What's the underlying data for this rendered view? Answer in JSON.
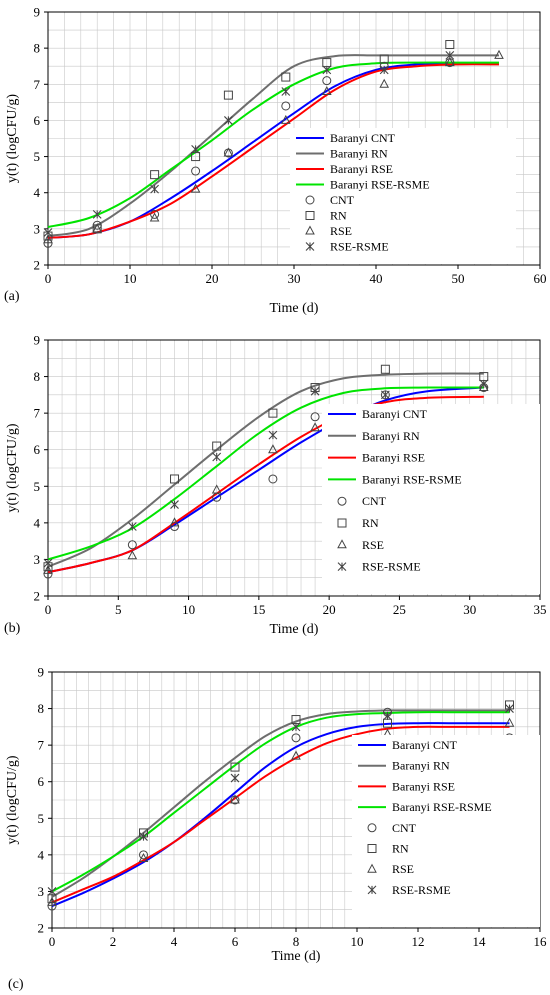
{
  "figure": {
    "colors": {
      "Baranyi CNT": "#0000FF",
      "Baranyi RN": "#6E6E6E",
      "Baranyi RSE": "#FF0000",
      "Baranyi RSE-RSME": "#00E400",
      "markers": "#444444",
      "grid": "#C8C8C8"
    },
    "marker_shapes": {
      "CNT": "circle",
      "RN": "square",
      "RSE": "triangle",
      "RSE-RSME": "asterisk"
    }
  },
  "chart_data": [
    {
      "panel_label": "(a)",
      "type": "line",
      "xlabel": "Time (d)",
      "ylabel": "y(t) (logCFU/g)",
      "xlim": [
        0,
        60
      ],
      "ylim": [
        2,
        9
      ],
      "xticks": [
        0,
        10,
        20,
        30,
        40,
        50,
        60
      ],
      "yticks": [
        2,
        3,
        4,
        5,
        6,
        7,
        8,
        9
      ],
      "grid": true,
      "legend_position": "center-right",
      "legend": [
        "Baranyi CNT",
        "Baranyi RN",
        "Baranyi RSE",
        "Baranyi RSE-RSME",
        "CNT",
        "RN",
        "RSE",
        "RSE-RSME"
      ],
      "lines": [
        {
          "name": "Baranyi CNT",
          "x": [
            0,
            5,
            10,
            15,
            20,
            25,
            30,
            35,
            40,
            45,
            50,
            55
          ],
          "y": [
            2.75,
            2.85,
            3.2,
            3.85,
            4.6,
            5.4,
            6.2,
            6.95,
            7.4,
            7.55,
            7.58,
            7.58
          ]
        },
        {
          "name": "Baranyi RN",
          "x": [
            0,
            5,
            10,
            15,
            20,
            25,
            30,
            35,
            40,
            45,
            50,
            55
          ],
          "y": [
            2.8,
            3.0,
            3.7,
            4.6,
            5.6,
            6.6,
            7.5,
            7.78,
            7.8,
            7.8,
            7.8,
            7.8
          ]
        },
        {
          "name": "Baranyi RSE",
          "x": [
            0,
            5,
            10,
            15,
            20,
            25,
            30,
            35,
            40,
            45,
            50,
            55
          ],
          "y": [
            2.75,
            2.85,
            3.2,
            3.7,
            4.45,
            5.25,
            6.05,
            6.85,
            7.35,
            7.5,
            7.55,
            7.55
          ]
        },
        {
          "name": "Baranyi RSE-RSME",
          "x": [
            0,
            5,
            10,
            15,
            20,
            25,
            30,
            35,
            40,
            45,
            50,
            55
          ],
          "y": [
            3.05,
            3.3,
            3.85,
            4.65,
            5.45,
            6.3,
            7.0,
            7.45,
            7.58,
            7.6,
            7.6,
            7.6
          ]
        }
      ],
      "points": [
        {
          "name": "CNT",
          "x": [
            0,
            6,
            13,
            18,
            22,
            29,
            34,
            41,
            49
          ],
          "y": [
            2.6,
            3.1,
            3.4,
            4.6,
            5.1,
            6.4,
            7.1,
            7.5,
            7.6
          ]
        },
        {
          "name": "RN",
          "x": [
            0,
            6,
            13,
            18,
            22,
            29,
            34,
            41,
            49
          ],
          "y": [
            2.8,
            3.0,
            4.5,
            5.0,
            6.7,
            7.2,
            7.6,
            7.7,
            8.1
          ]
        },
        {
          "name": "RSE",
          "x": [
            0,
            6,
            13,
            18,
            22,
            29,
            34,
            41,
            49,
            55
          ],
          "y": [
            2.7,
            3.0,
            3.3,
            4.1,
            5.1,
            6.0,
            6.8,
            7.0,
            7.6,
            7.8
          ]
        },
        {
          "name": "RSE-RSME",
          "x": [
            0,
            6,
            13,
            18,
            22,
            29,
            34,
            41,
            49
          ],
          "y": [
            2.9,
            3.4,
            4.1,
            5.2,
            6.0,
            6.8,
            7.4,
            7.4,
            7.8
          ]
        }
      ]
    },
    {
      "panel_label": "(b)",
      "type": "line",
      "xlabel": "Time (d)",
      "ylabel": "y(t) (logCFU/g)",
      "xlim": [
        0,
        35
      ],
      "ylim": [
        2,
        9
      ],
      "xticks": [
        0,
        5,
        10,
        15,
        20,
        25,
        30,
        35
      ],
      "yticks": [
        2,
        3,
        4,
        5,
        6,
        7,
        8,
        9
      ],
      "grid": true,
      "legend_position": "center-right",
      "legend": [
        "Baranyi CNT",
        "Baranyi RN",
        "Baranyi RSE",
        "Baranyi RSE-RSME",
        "CNT",
        "RN",
        "RSE",
        "RSE-RSME"
      ],
      "lines": [
        {
          "name": "Baranyi CNT",
          "x": [
            0,
            3,
            6,
            9,
            12,
            15,
            18,
            21,
            24,
            27,
            31
          ],
          "y": [
            2.65,
            2.9,
            3.25,
            3.95,
            4.7,
            5.45,
            6.2,
            6.85,
            7.35,
            7.6,
            7.7
          ]
        },
        {
          "name": "Baranyi RN",
          "x": [
            0,
            3,
            6,
            9,
            12,
            15,
            18,
            21,
            24,
            27,
            31
          ],
          "y": [
            2.8,
            3.3,
            4.1,
            5.05,
            6.0,
            6.9,
            7.6,
            7.95,
            8.05,
            8.08,
            8.08
          ]
        },
        {
          "name": "Baranyi RSE",
          "x": [
            0,
            3,
            6,
            9,
            12,
            15,
            18,
            21,
            24,
            27,
            31
          ],
          "y": [
            2.65,
            2.9,
            3.25,
            4.0,
            4.8,
            5.6,
            6.35,
            6.95,
            7.3,
            7.42,
            7.45
          ]
        },
        {
          "name": "Baranyi RSE-RSME",
          "x": [
            0,
            3,
            6,
            9,
            12,
            15,
            18,
            21,
            24,
            27,
            31
          ],
          "y": [
            3.0,
            3.35,
            3.85,
            4.65,
            5.55,
            6.45,
            7.15,
            7.55,
            7.68,
            7.7,
            7.7
          ]
        }
      ],
      "points": [
        {
          "name": "CNT",
          "x": [
            0,
            6,
            9,
            12,
            16,
            19,
            24,
            31
          ],
          "y": [
            2.6,
            3.4,
            3.9,
            4.7,
            5.2,
            6.9,
            7.5,
            7.7
          ]
        },
        {
          "name": "RN",
          "x": [
            0,
            9,
            12,
            16,
            19,
            24,
            31
          ],
          "y": [
            2.8,
            5.2,
            6.1,
            7.0,
            7.7,
            8.2,
            8.0
          ]
        },
        {
          "name": "RSE",
          "x": [
            0,
            6,
            9,
            12,
            16,
            19,
            24,
            31
          ],
          "y": [
            2.7,
            3.1,
            4.0,
            4.9,
            6.0,
            6.6,
            7.1,
            7.7
          ]
        },
        {
          "name": "RSE-RSME",
          "x": [
            0,
            6,
            9,
            12,
            16,
            19,
            24,
            31
          ],
          "y": [
            2.9,
            3.9,
            4.5,
            5.8,
            6.4,
            7.6,
            7.5,
            7.8
          ]
        }
      ]
    },
    {
      "panel_label": "(c)",
      "type": "line",
      "xlabel": "Time (d)",
      "ylabel": "y(t) (logCFU/g)",
      "xlim": [
        0,
        16
      ],
      "ylim": [
        2,
        9
      ],
      "xticks": [
        0,
        2,
        4,
        6,
        8,
        10,
        12,
        14,
        16
      ],
      "yticks": [
        2,
        3,
        4,
        5,
        6,
        7,
        8,
        9
      ],
      "grid": true,
      "legend_position": "center-right",
      "legend": [
        "Baranyi CNT",
        "Baranyi RN",
        "Baranyi RSE",
        "Baranyi RSE-RSME",
        "CNT",
        "RN",
        "RSE",
        "RSE-RSME"
      ],
      "lines": [
        {
          "name": "Baranyi CNT",
          "x": [
            0,
            1,
            2,
            3,
            4,
            5,
            6,
            7,
            8,
            9,
            10,
            11,
            12,
            13,
            14,
            15
          ],
          "y": [
            2.6,
            2.95,
            3.35,
            3.8,
            4.35,
            5.0,
            5.7,
            6.4,
            6.95,
            7.3,
            7.5,
            7.58,
            7.6,
            7.6,
            7.6,
            7.6
          ]
        },
        {
          "name": "Baranyi RN",
          "x": [
            0,
            1,
            2,
            3,
            4,
            5,
            6,
            7,
            8,
            9,
            10,
            11,
            12,
            13,
            14,
            15
          ],
          "y": [
            2.85,
            3.35,
            3.95,
            4.6,
            5.3,
            6.0,
            6.65,
            7.25,
            7.65,
            7.85,
            7.92,
            7.95,
            7.95,
            7.95,
            7.95,
            7.95
          ]
        },
        {
          "name": "Baranyi RSE",
          "x": [
            0,
            1,
            2,
            3,
            4,
            5,
            6,
            7,
            8,
            9,
            10,
            11,
            12,
            13,
            14,
            15
          ],
          "y": [
            2.7,
            3.05,
            3.4,
            3.85,
            4.35,
            4.95,
            5.55,
            6.15,
            6.65,
            7.05,
            7.3,
            7.45,
            7.5,
            7.5,
            7.5,
            7.5
          ]
        },
        {
          "name": "Baranyi RSE-RSME",
          "x": [
            0,
            1,
            2,
            3,
            4,
            5,
            6,
            7,
            8,
            9,
            10,
            11,
            12,
            13,
            14,
            15
          ],
          "y": [
            3.0,
            3.45,
            3.95,
            4.5,
            5.15,
            5.8,
            6.45,
            7.05,
            7.5,
            7.75,
            7.85,
            7.88,
            7.9,
            7.9,
            7.9,
            7.9
          ]
        }
      ],
      "points": [
        {
          "name": "CNT",
          "x": [
            0,
            3,
            6,
            8,
            11,
            15
          ],
          "y": [
            2.6,
            4.0,
            5.5,
            7.2,
            7.9,
            7.2
          ]
        },
        {
          "name": "RN",
          "x": [
            0,
            3,
            6,
            8,
            11,
            15
          ],
          "y": [
            2.8,
            4.6,
            6.4,
            7.7,
            7.6,
            8.1
          ]
        },
        {
          "name": "RSE",
          "x": [
            0,
            3,
            6,
            8,
            11,
            15
          ],
          "y": [
            2.7,
            3.9,
            5.5,
            6.7,
            7.3,
            7.6
          ]
        },
        {
          "name": "RSE-RSME",
          "x": [
            0,
            3,
            6,
            8,
            11,
            15
          ],
          "y": [
            3.0,
            4.5,
            6.1,
            7.5,
            7.8,
            8.0
          ]
        }
      ]
    }
  ]
}
